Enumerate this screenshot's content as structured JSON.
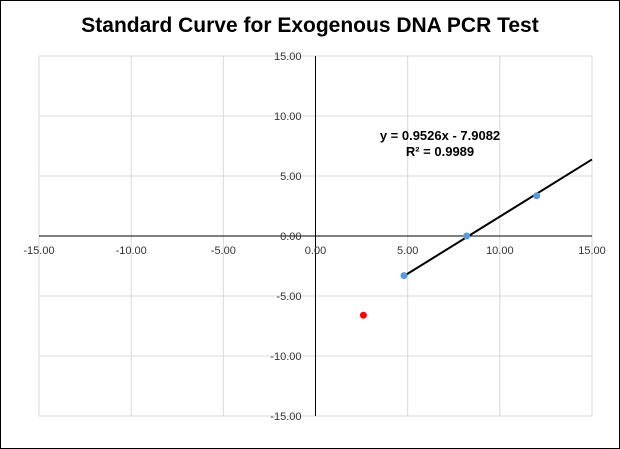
{
  "chart_data": {
    "type": "scatter",
    "title": "Standard Curve for Exogenous DNA PCR Test",
    "xlabel": "",
    "ylabel": "",
    "xlim": [
      -15,
      15
    ],
    "ylim": [
      -15,
      15
    ],
    "x_ticks": [
      "-15.00",
      "-10.00",
      "-5.00",
      "0.00",
      "5.00",
      "10.00",
      "15.00"
    ],
    "y_ticks": [
      "15.00",
      "10.00",
      "5.00",
      "0.00",
      "-5.00",
      "-10.00",
      "-15.00"
    ],
    "x_tick_values": [
      -15,
      -10,
      -5,
      0,
      5,
      10,
      15
    ],
    "y_tick_values": [
      15,
      10,
      5,
      0,
      -5,
      -10,
      -15
    ],
    "grid": true,
    "series": [
      {
        "points": [
          [
            4.8,
            -3.3
          ],
          [
            8.2,
            0.0
          ],
          [
            12.0,
            3.35
          ]
        ],
        "color": "#5b9bd5"
      },
      {
        "points": [
          [
            2.6,
            -6.6
          ]
        ],
        "color": "#ff0000"
      }
    ],
    "trendline": {
      "slope": 0.9526,
      "intercept": -7.9082,
      "x_range": [
        4.8,
        15.0
      ],
      "color": "#000000",
      "equation": "y = 0.9526x - 7.9082",
      "r_squared": "R² = 0.9989"
    }
  }
}
